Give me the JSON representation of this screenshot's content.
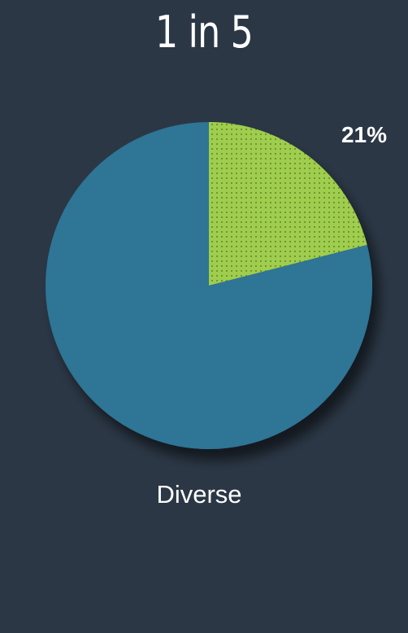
{
  "title": "1 in 5",
  "chart_data": {
    "type": "pie",
    "title": "1 in 5",
    "slices": [
      {
        "label": "Diverse",
        "value": 21,
        "value_label": "21%",
        "color": "#9fcd4d",
        "pattern": "dots"
      },
      {
        "label": "",
        "value": 79,
        "color": "#2d7596"
      }
    ],
    "category_label": "Diverse"
  },
  "colors": {
    "background": "#2b3745",
    "highlight": "#9fcd4d",
    "remainder": "#2d7596",
    "text": "#ffffff"
  }
}
